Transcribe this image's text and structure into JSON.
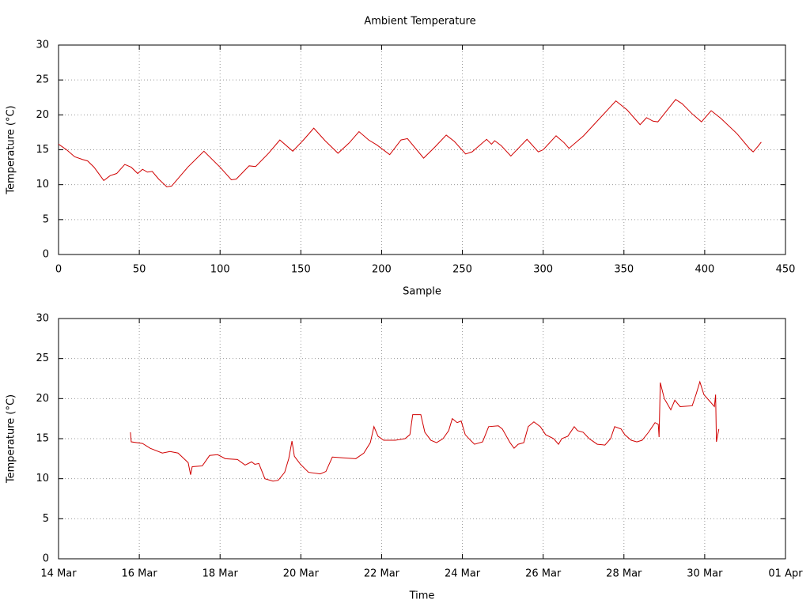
{
  "chart_data": [
    {
      "type": "line",
      "title": "Ambient Temperature",
      "x_label": "Sample",
      "y_label": "Temperature (°C)",
      "color": "#d00000",
      "grid": true,
      "xlim": [
        0,
        450
      ],
      "xticks": [
        0,
        50,
        100,
        150,
        200,
        250,
        300,
        350,
        400,
        450
      ],
      "ylim": [
        0,
        30
      ],
      "yticks": [
        0,
        5,
        10,
        15,
        20,
        25,
        30
      ],
      "x": [
        0,
        5,
        10,
        15,
        18,
        22,
        28,
        32,
        36,
        41,
        45,
        49,
        52,
        55,
        58,
        62,
        67,
        70,
        80,
        90,
        100,
        107,
        110,
        118,
        122,
        130,
        137,
        145,
        152,
        158,
        165,
        173,
        180,
        186,
        192,
        197,
        205,
        212,
        216,
        226,
        233,
        240,
        245,
        252,
        256,
        265,
        268,
        270,
        274,
        280,
        290,
        297,
        300,
        308,
        313,
        316,
        325,
        345,
        352,
        360,
        364,
        368,
        371,
        382,
        386,
        392,
        398,
        404,
        410,
        420,
        428,
        430,
        433,
        435
      ],
      "values": [
        15.8,
        15,
        14,
        13.6,
        13.4,
        12.5,
        10.6,
        11.3,
        11.6,
        12.9,
        12.5,
        11.6,
        12.2,
        11.8,
        11.9,
        10.8,
        9.7,
        9.8,
        12.5,
        14.8,
        12.5,
        10.7,
        10.8,
        12.7,
        12.6,
        14.5,
        16.4,
        14.8,
        16.5,
        18.1,
        16.3,
        14.5,
        16,
        17.6,
        16.4,
        15.7,
        14.3,
        16.4,
        16.6,
        13.8,
        15.4,
        17.1,
        16.2,
        14.4,
        14.7,
        16.5,
        15.8,
        16.3,
        15.6,
        14.1,
        16.5,
        14.7,
        15,
        17,
        16,
        15.2,
        17,
        22,
        20.7,
        18.6,
        19.6,
        19.1,
        19,
        22.2,
        21.6,
        20.2,
        19,
        20.6,
        19.5,
        17.3,
        15.1,
        14.7,
        15.5,
        16.1
      ]
    },
    {
      "type": "line",
      "x_label": "Time",
      "y_label": "Temperature (°C)",
      "color": "#d00000",
      "grid": true,
      "xlim": [
        14,
        32
      ],
      "xticks": [
        {
          "value": 14,
          "label": "14 Mar"
        },
        {
          "value": 16,
          "label": "16 Mar"
        },
        {
          "value": 18,
          "label": "18 Mar"
        },
        {
          "value": 20,
          "label": "20 Mar"
        },
        {
          "value": 22,
          "label": "22 Mar"
        },
        {
          "value": 24,
          "label": "24 Mar"
        },
        {
          "value": 26,
          "label": "26 Mar"
        },
        {
          "value": 28,
          "label": "28 Mar"
        },
        {
          "value": 30,
          "label": "30 Mar"
        },
        {
          "value": 32,
          "label": "01 Apr"
        }
      ],
      "ylim": [
        0,
        30
      ],
      "yticks": [
        0,
        5,
        10,
        15,
        20,
        25,
        30
      ],
      "x": [
        15.78,
        15.8,
        16.08,
        16.27,
        16.57,
        16.76,
        16.96,
        17.21,
        17.27,
        17.31,
        17.56,
        17.74,
        17.94,
        18.13,
        18.43,
        18.62,
        18.78,
        18.86,
        18.96,
        19.11,
        19.31,
        19.44,
        19.6,
        19.7,
        19.78,
        19.84,
        19.99,
        20.19,
        20.48,
        20.62,
        20.78,
        21.07,
        21.36,
        21.56,
        21.72,
        21.81,
        21.91,
        22.05,
        22.34,
        22.58,
        22.7,
        22.77,
        22.97,
        23.07,
        23.22,
        23.36,
        23.52,
        23.66,
        23.75,
        23.87,
        23.97,
        24.07,
        24.2,
        24.3,
        24.5,
        24.65,
        24.89,
        24.99,
        25.18,
        25.28,
        25.38,
        25.52,
        25.63,
        25.77,
        25.93,
        26.06,
        26.26,
        26.38,
        26.46,
        26.61,
        26.77,
        26.85,
        26.99,
        27.14,
        27.34,
        27.53,
        27.67,
        27.77,
        27.93,
        28.02,
        28.18,
        28.32,
        28.45,
        28.61,
        28.77,
        28.85,
        28.87,
        28.9,
        29.0,
        29.16,
        29.26,
        29.39,
        29.69,
        29.79,
        29.88,
        29.98,
        30.12,
        30.24,
        30.27,
        30.29,
        30.35
      ],
      "values": [
        15.8,
        14.6,
        14.4,
        13.8,
        13.2,
        13.4,
        13.2,
        12,
        10.5,
        11.5,
        11.6,
        12.9,
        13,
        12.5,
        12.4,
        11.7,
        12.1,
        11.8,
        11.9,
        10,
        9.7,
        9.8,
        10.8,
        12.5,
        14.7,
        12.8,
        11.8,
        10.8,
        10.6,
        10.9,
        12.7,
        12.6,
        12.5,
        13.2,
        14.5,
        16.5,
        15.3,
        14.8,
        14.8,
        15,
        15.5,
        18,
        18,
        15.8,
        14.8,
        14.5,
        15,
        16,
        17.5,
        17,
        17.2,
        15.5,
        14.8,
        14.3,
        14.6,
        16.5,
        16.6,
        16.2,
        14.5,
        13.8,
        14.3,
        14.5,
        16.5,
        17.1,
        16.5,
        15.5,
        15,
        14.3,
        15,
        15.3,
        16.5,
        16,
        15.8,
        15,
        14.3,
        14.2,
        15,
        16.5,
        16.2,
        15.5,
        14.8,
        14.6,
        14.8,
        15.8,
        17,
        16.8,
        15.2,
        22,
        20,
        18.6,
        19.8,
        19,
        19.1,
        20.6,
        22.1,
        20.5,
        19.7,
        19,
        20.5,
        14.6,
        16.2
      ]
    }
  ]
}
